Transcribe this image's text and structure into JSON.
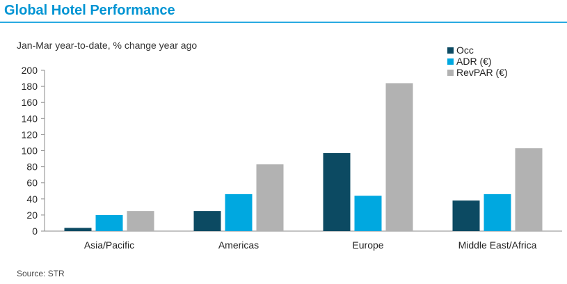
{
  "header": {
    "title": "Global Hotel Performance"
  },
  "footer": {
    "source": "Source:  STR"
  },
  "chart_data": {
    "type": "bar",
    "title": "Global Hotel Performance",
    "subtitle": "Jan-Mar year-to-date, % change year ago",
    "xlabel": "",
    "ylabel": "",
    "ylim": [
      0,
      200
    ],
    "yticks": [
      0,
      20,
      40,
      60,
      80,
      100,
      120,
      140,
      160,
      180,
      200
    ],
    "grid": false,
    "legend": "top-right",
    "categories": [
      "Asia/Pacific",
      "Americas",
      "Europe",
      "Middle East/Africa"
    ],
    "series": [
      {
        "name": "Occ",
        "color": "#0c4a62",
        "values": [
          4,
          25,
          97,
          38
        ]
      },
      {
        "name": "ADR (€)",
        "color": "#00a8e0",
        "values": [
          20,
          46,
          44,
          46
        ]
      },
      {
        "name": "RevPAR (€)",
        "color": "#b2b2b2",
        "values": [
          25,
          83,
          184,
          103
        ]
      }
    ]
  }
}
